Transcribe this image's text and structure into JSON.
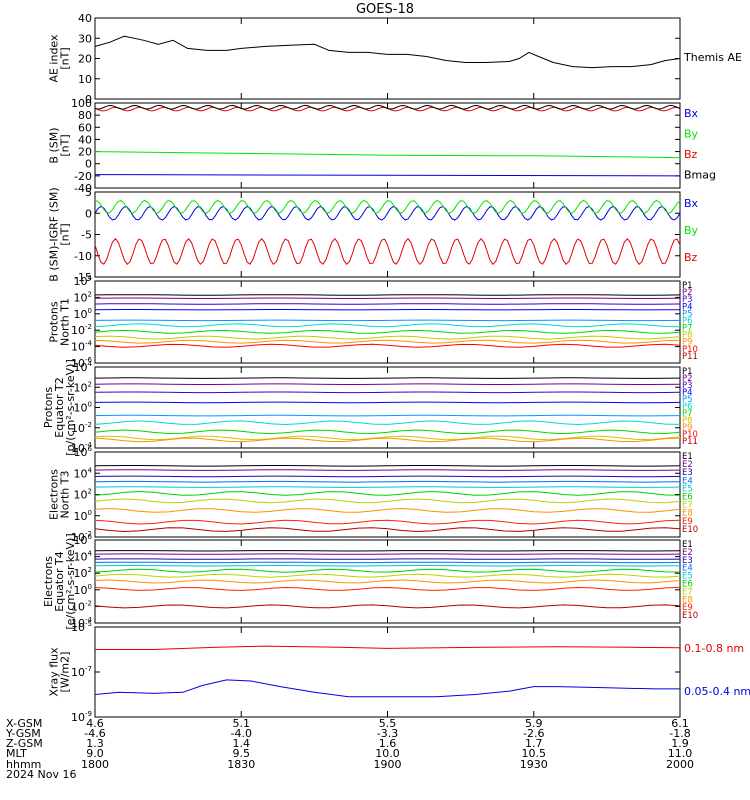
{
  "title": "GOES-18",
  "colors": {
    "black": "#000000",
    "blue": "#0000e6",
    "green": "#00e600",
    "red": "#e60000",
    "P1": "#000000",
    "P2": "#7a0090",
    "P3": "#3a00c8",
    "P4": "#0000ff",
    "P5": "#0098ff",
    "P6": "#00d8d8",
    "P7": "#00d800",
    "P8": "#c8c800",
    "P9": "#ff9000",
    "P10": "#ff0000",
    "P11": "#b00000",
    "E1": "#000000",
    "E2": "#7a0090",
    "E3": "#2000b0",
    "E4": "#0070ff",
    "E5": "#00c8e0",
    "E6": "#00d000",
    "E7": "#c0d000",
    "E8": "#ff9000",
    "E9": "#ff2000",
    "E10": "#b00000"
  },
  "footer": {
    "row_labels": [
      "X-GSM",
      "Y-GSM",
      "Z-GSM",
      "MLT",
      "hhmm",
      "2024 Nov 16"
    ],
    "columns": [
      [
        "4.6",
        "-4.6",
        "1.3",
        "9.0",
        "1800"
      ],
      [
        "5.1",
        "-4.0",
        "1.4",
        "9.5",
        "1830"
      ],
      [
        "5.5",
        "-3.3",
        "1.6",
        "10.0",
        "1900"
      ],
      [
        "5.9",
        "-2.6",
        "1.7",
        "10.5",
        "1930"
      ],
      [
        "6.1",
        "-1.8",
        "1.9",
        "11.0",
        "2000"
      ]
    ]
  },
  "chart_data": [
    {
      "type": "line",
      "ylabel": [
        "AE index",
        "[nT]"
      ],
      "ylim": [
        0,
        40
      ],
      "yticks": [
        "0",
        "10",
        "20",
        "30",
        "40"
      ],
      "x": [
        "1800",
        "1830",
        "1900",
        "1930",
        "2000"
      ],
      "series": [
        {
          "name": "Themis AE",
          "color_key": "black",
          "values": [
            [
              1800,
              26
            ],
            [
              1803,
              28
            ],
            [
              1806,
              31
            ],
            [
              1810,
              29
            ],
            [
              1813,
              27
            ],
            [
              1816,
              29
            ],
            [
              1819,
              25
            ],
            [
              1823,
              24
            ],
            [
              1827,
              24
            ],
            [
              1830,
              25
            ],
            [
              1835,
              26
            ],
            [
              1840,
              26.5
            ],
            [
              1845,
              27
            ],
            [
              1848,
              24
            ],
            [
              1852,
              23
            ],
            [
              1856,
              23
            ],
            [
              1900,
              22
            ],
            [
              1904,
              22
            ],
            [
              1908,
              21
            ],
            [
              1912,
              19
            ],
            [
              1916,
              18
            ],
            [
              1920,
              18
            ],
            [
              1925,
              18.5
            ],
            [
              1927,
              20
            ],
            [
              1929,
              23
            ],
            [
              1931,
              21
            ],
            [
              1934,
              18
            ],
            [
              1938,
              16
            ],
            [
              1942,
              15.5
            ],
            [
              1946,
              16
            ],
            [
              1950,
              16
            ],
            [
              1954,
              17
            ],
            [
              1957,
              19
            ],
            [
              2000,
              20
            ]
          ]
        }
      ]
    },
    {
      "type": "line",
      "ylabel": [
        "B (SM)",
        "[nT]"
      ],
      "ylim": [
        -40,
        100
      ],
      "yticks": [
        "-40",
        "-20",
        "0",
        "20",
        "40",
        "60",
        "80",
        "100"
      ],
      "series": [
        {
          "name": "Bx",
          "color_key": "blue",
          "values": [
            [
              1800,
              -18
            ],
            [
              2000,
              -20
            ]
          ]
        },
        {
          "name": "By",
          "color_key": "green",
          "values": [
            [
              1800,
              20
            ],
            [
              1830,
              17
            ],
            [
              1900,
              14
            ],
            [
              1930,
              13
            ],
            [
              2000,
              10
            ]
          ]
        },
        {
          "name": "Bz",
          "color_key": "red",
          "osc_mean": 90,
          "osc_amp": 3
        },
        {
          "name": "Bmag",
          "color_key": "black",
          "osc_mean": 93,
          "osc_amp": 3
        }
      ]
    },
    {
      "type": "line",
      "ylabel": [
        "B (SM)-IGRF (SM)",
        "[nT]"
      ],
      "ylim": [
        -15,
        5
      ],
      "yticks": [
        "-15",
        "-10",
        "-5",
        "0",
        "5"
      ],
      "series": [
        {
          "name": "Bx",
          "color_key": "blue",
          "osc_mean": 0,
          "osc_amp": 1.6
        },
        {
          "name": "By",
          "color_key": "green",
          "osc_mean": 1.5,
          "osc_amp": 1.5
        },
        {
          "name": "Bz",
          "color_key": "red",
          "osc_mean": -9,
          "osc_amp": 3
        }
      ]
    },
    {
      "type": "line",
      "ylabel": [
        "Protons",
        "North T1"
      ],
      "ylog": true,
      "ylim_exp": [
        -6,
        4
      ],
      "channels": [
        "P1",
        "P2",
        "P3",
        "P4",
        "P5",
        "P6",
        "P7",
        "P8",
        "P9",
        "P10",
        "P11"
      ],
      "log_levels": [
        2.3,
        1.9,
        1.2,
        0.5,
        -0.8,
        -1.4,
        -2.2,
        -2.9,
        -3.4,
        -3.9,
        null
      ]
    },
    {
      "type": "line",
      "ylabel": [
        "Protons",
        "Equator T2",
        "[p/(cm²-s-sr-keV)]"
      ],
      "ylog": true,
      "ylim_exp": [
        -4,
        4
      ],
      "channels": [
        "P1",
        "P2",
        "P3",
        "P4",
        "P5",
        "P6",
        "P7",
        "P8",
        "P9",
        "P10",
        "P11"
      ],
      "log_levels": [
        2.9,
        2.3,
        1.5,
        0.5,
        -0.8,
        -1.5,
        -2.4,
        -3.0,
        -3.2,
        null,
        null
      ]
    },
    {
      "type": "line",
      "ylabel": [
        "Electrons",
        "North T3"
      ],
      "ylog": true,
      "ylim_exp": [
        -2,
        6
      ],
      "channels": [
        "E1",
        "E2",
        "E3",
        "E4",
        "E5",
        "E6",
        "E7",
        "E8",
        "E9",
        "E10"
      ],
      "log_levels": [
        4.7,
        4.3,
        3.7,
        3.2,
        2.7,
        2.1,
        1.4,
        0.5,
        -0.6,
        -1.3
      ]
    },
    {
      "type": "line",
      "ylabel": [
        "Electrons",
        "Equator T4",
        "[e/(cm²-s-sr-keV)]"
      ],
      "ylog": true,
      "ylim_exp": [
        -4,
        6
      ],
      "channels": [
        "E1",
        "E2",
        "E3",
        "E4",
        "E5",
        "E6",
        "E7",
        "E8",
        "E9",
        "E10"
      ],
      "log_levels": [
        4.7,
        4.3,
        3.7,
        3.3,
        2.9,
        2.3,
        1.7,
        1.0,
        0.1,
        -2.0
      ]
    },
    {
      "type": "line",
      "ylabel": [
        "Xray flux",
        "[W/m2]"
      ],
      "ylog": true,
      "ylim_exp": [
        -9,
        -5
      ],
      "series": [
        {
          "name": "0.1-0.8 nm",
          "color_key": "red",
          "values": [
            [
              1800,
              -6.0
            ],
            [
              1812,
              -6.0
            ],
            [
              1825,
              -5.9
            ],
            [
              1835,
              -5.85
            ],
            [
              1850,
              -5.9
            ],
            [
              1900,
              -5.95
            ],
            [
              1920,
              -5.9
            ],
            [
              1935,
              -5.88
            ],
            [
              1950,
              -5.9
            ],
            [
              2000,
              -5.92
            ]
          ]
        },
        {
          "name": "0.05-0.4 nm",
          "color_key": "blue",
          "values": [
            [
              1800,
              -8.0
            ],
            [
              1805,
              -7.9
            ],
            [
              1812,
              -7.95
            ],
            [
              1818,
              -7.9
            ],
            [
              1822,
              -7.6
            ],
            [
              1827,
              -7.35
            ],
            [
              1832,
              -7.4
            ],
            [
              1838,
              -7.65
            ],
            [
              1845,
              -7.9
            ],
            [
              1852,
              -8.1
            ],
            [
              1900,
              -8.1
            ],
            [
              1910,
              -8.1
            ],
            [
              1918,
              -8.0
            ],
            [
              1925,
              -7.85
            ],
            [
              1930,
              -7.65
            ],
            [
              1935,
              -7.65
            ],
            [
              1945,
              -7.7
            ],
            [
              1955,
              -7.75
            ],
            [
              2000,
              -7.75
            ]
          ]
        }
      ]
    }
  ]
}
